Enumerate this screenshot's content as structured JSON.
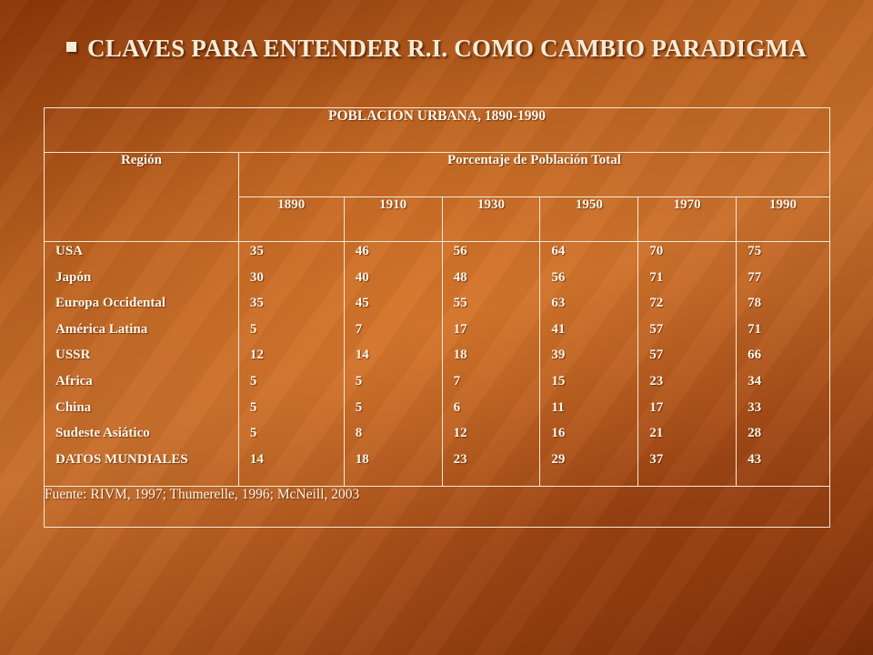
{
  "slide": {
    "title": "CLAVES PARA ENTENDER R.I. COMO CAMBIO PARADIGMA",
    "bullet_icon": "square-bullet-icon"
  },
  "table": {
    "title": "POBLACION URBANA, 1890-1990",
    "region_header": "Región",
    "group_header": "Porcentaje de Población Total",
    "years": [
      "1890",
      "1910",
      "1930",
      "1950",
      "1970",
      "1990"
    ],
    "regions": [
      "USA",
      "Japón",
      "Europa Occidental",
      "América Latina",
      "USSR",
      "Africa",
      "China",
      "Sudeste Asiático",
      "DATOS MUNDIALES"
    ],
    "values": [
      [
        "35",
        "30",
        "35",
        "5",
        "12",
        "5",
        "5",
        "5",
        "14"
      ],
      [
        "46",
        "40",
        "45",
        "7",
        "14",
        "5",
        "5",
        "8",
        "18"
      ],
      [
        "56",
        "48",
        "55",
        "17",
        "18",
        "7",
        "6",
        "12",
        "23"
      ],
      [
        "64",
        "56",
        "63",
        "41",
        "39",
        "15",
        "11",
        "16",
        "29"
      ],
      [
        "70",
        "71",
        "72",
        "57",
        "57",
        "23",
        "17",
        "21",
        "37"
      ],
      [
        "75",
        "77",
        "78",
        "71",
        "66",
        "34",
        "33",
        "28",
        "43"
      ]
    ],
    "source": "Fuente: RIVM, 1997; Thumerelle, 1996; McNeill, 2003"
  }
}
